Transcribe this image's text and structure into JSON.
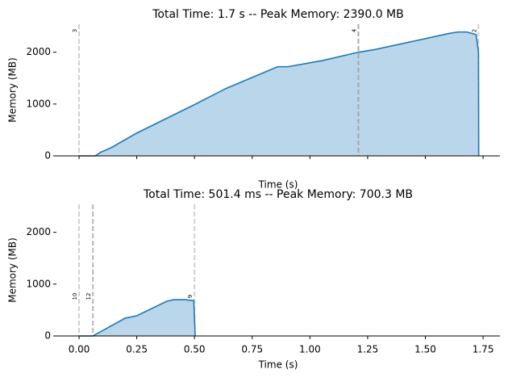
{
  "chart_data": [
    {
      "type": "area",
      "title": "Total Time: 1.7 s -- Peak Memory: 2390.0 MB",
      "x_label": "Time (s)",
      "y_label": "Memory (MB)",
      "x": [
        0,
        0.07,
        0.094,
        0.14,
        0.25,
        0.496,
        0.636,
        0.775,
        0.86,
        0.905,
        1.055,
        1.21,
        1.28,
        1.6,
        1.64,
        1.68,
        1.72,
        1.73,
        1.731
      ],
      "values": [
        0,
        0,
        70,
        160,
        440,
        980,
        1300,
        1560,
        1720,
        1720,
        1840,
        2000,
        2050,
        2360,
        2390,
        2390,
        2340,
        2000,
        0
      ],
      "color": "#1f77b4",
      "fill_color": "#bad6ea",
      "xlim": [
        -0.098,
        1.823
      ],
      "ylim": [
        0,
        2540
      ],
      "xticks": [
        0,
        0.25,
        0.5,
        0.75,
        1,
        1.25,
        1.5,
        1.75
      ],
      "yticks": [
        0,
        1000,
        2000
      ],
      "vlines": [
        {
          "x": 0,
          "label": "3",
          "color": "#d0d0d0"
        },
        {
          "x": 1.21,
          "label": "4",
          "color": "#a8a8a8"
        },
        {
          "x": 1.73,
          "label": "2",
          "color": "#d0d0d0"
        }
      ]
    },
    {
      "type": "area",
      "title": "Total Time: 501.4 ms -- Peak Memory: 700.3 MB",
      "x_label": "Time (s)",
      "y_label": "Memory (MB)",
      "x": [
        0,
        0.06,
        0.2,
        0.25,
        0.38,
        0.41,
        0.46,
        0.497,
        0.503
      ],
      "values": [
        0,
        0,
        344,
        390,
        670,
        700,
        700,
        680,
        0
      ],
      "color": "#1f77b4",
      "fill_color": "#bad6ea",
      "xlim": [
        -0.098,
        1.823
      ],
      "ylim": [
        0,
        2540
      ],
      "xticks": [
        {
          "value": 0,
          "label": "0.00"
        },
        {
          "value": 0.25,
          "label": "0.25"
        },
        {
          "value": 0.5,
          "label": "0.50"
        },
        {
          "value": 0.75,
          "label": "0.75"
        },
        {
          "value": 1,
          "label": "1.00"
        },
        {
          "value": 1.25,
          "label": "1.25"
        },
        {
          "value": 1.5,
          "label": "1.50"
        },
        {
          "value": 1.75,
          "label": "1.75"
        }
      ],
      "yticks": [
        0,
        1000,
        2000
      ],
      "vlines": [
        {
          "x": 0,
          "label": "10",
          "color": "#d0d0d0"
        },
        {
          "x": 0.06,
          "label": "12",
          "color": "#b8b8b8"
        },
        {
          "x": 0.5,
          "label": "9",
          "color": "#d0d0d0"
        }
      ]
    }
  ]
}
